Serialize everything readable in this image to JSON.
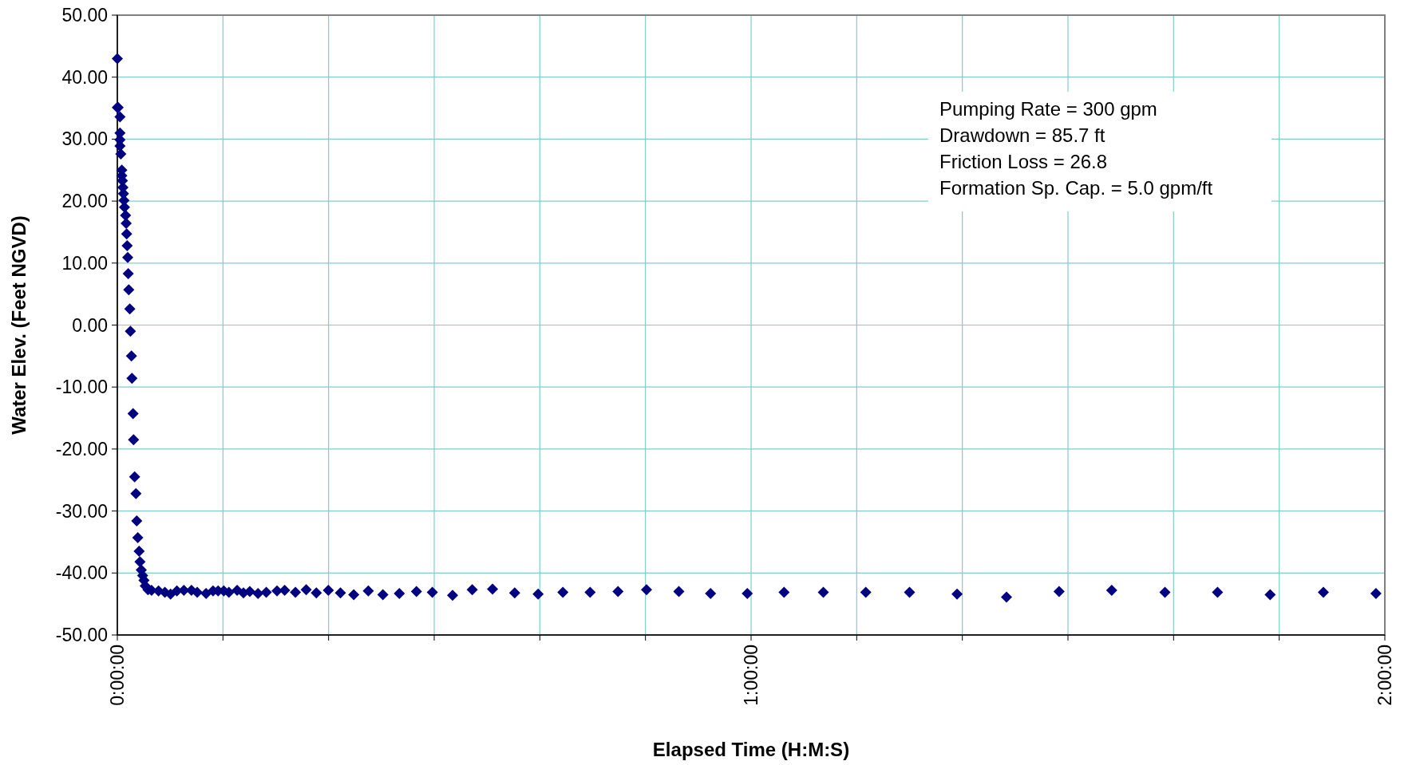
{
  "chart_data": {
    "type": "scatter",
    "xlabel": "Elapsed Time (H:M:S)",
    "ylabel": "Water Elev. (Feet NGVD)",
    "annotations": [
      "Pumping Rate = 300 gpm",
      "Drawdown = 85.7 ft",
      "Friction Loss = 26.8",
      "Formation Sp. Cap. = 5.0 gpm/ft"
    ],
    "series": [
      {
        "color": "#000080",
        "x": [
          0,
          0,
          0.0013,
          0.0042,
          0.0042,
          0.0042,
          0.0042,
          0.0055,
          0.0071,
          0.0071,
          0.008,
          0.0088,
          0.0097,
          0.0105,
          0.0113,
          0.013,
          0.0139,
          0.0147,
          0.0155,
          0.0164,
          0.0172,
          0.018,
          0.0197,
          0.0206,
          0.0223,
          0.0231,
          0.0248,
          0.0256,
          0.0273,
          0.0294,
          0.0306,
          0.0323,
          0.0344,
          0.0357,
          0.0378,
          0.0399,
          0.042,
          0.0441,
          0.0483,
          0.054,
          0.065,
          0.075,
          0.084,
          0.094,
          0.105,
          0.117,
          0.126,
          0.14,
          0.151,
          0.159,
          0.168,
          0.176,
          0.189,
          0.199,
          0.209,
          0.222,
          0.235,
          0.252,
          0.264,
          0.281,
          0.298,
          0.314,
          0.333,
          0.352,
          0.373,
          0.396,
          0.419,
          0.445,
          0.472,
          0.497,
          0.529,
          0.56,
          0.592,
          0.627,
          0.664,
          0.703,
          0.746,
          0.79,
          0.835,
          0.886,
          0.936,
          0.994,
          1.052,
          1.114,
          1.181,
          1.25,
          1.325,
          1.403,
          1.486,
          1.569,
          1.653,
          1.736,
          1.819,
          1.903,
          1.986
        ],
        "values": [
          43.0,
          35.1,
          35.1,
          33.6,
          31.0,
          29.9,
          28.9,
          27.6,
          25.0,
          24.1,
          23.3,
          22.2,
          21.2,
          20.1,
          19.0,
          17.7,
          16.4,
          14.7,
          12.8,
          10.9,
          8.3,
          5.7,
          2.6,
          -1.0,
          -5.0,
          -8.6,
          -14.3,
          -18.5,
          -24.5,
          -27.2,
          -31.6,
          -34.3,
          -36.5,
          -38.2,
          -39.5,
          -40.4,
          -41.2,
          -42.1,
          -42.7,
          -42.8,
          -42.9,
          -43.1,
          -43.4,
          -42.9,
          -42.8,
          -42.8,
          -43.1,
          -43.3,
          -42.9,
          -42.9,
          -42.9,
          -43.1,
          -42.8,
          -43.2,
          -43.0,
          -43.3,
          -43.1,
          -42.9,
          -42.8,
          -43.1,
          -42.7,
          -43.2,
          -42.8,
          -43.2,
          -43.5,
          -42.9,
          -43.5,
          -43.3,
          -43.0,
          -43.1,
          -43.6,
          -42.7,
          -42.6,
          -43.2,
          -43.4,
          -43.1,
          -43.1,
          -43.0,
          -42.7,
          -43.0,
          -43.3,
          -43.3,
          -43.1,
          -43.1,
          -43.1,
          -43.1,
          -43.4,
          -43.9,
          -43.0,
          -42.8,
          -43.1,
          -43.1,
          -43.5,
          -43.1,
          -43.3
        ]
      }
    ],
    "xlim": [
      0,
      2
    ],
    "xticks": [
      {
        "value": 0,
        "label": "0:00:00"
      },
      {
        "value": 0.16667,
        "label": null
      },
      {
        "value": 0.33333,
        "label": null
      },
      {
        "value": 0.5,
        "label": null
      },
      {
        "value": 0.66667,
        "label": null
      },
      {
        "value": 0.83333,
        "label": null
      },
      {
        "value": 1,
        "label": "1:00:00"
      },
      {
        "value": 1.16667,
        "label": null
      },
      {
        "value": 1.33333,
        "label": null
      },
      {
        "value": 1.5,
        "label": null
      },
      {
        "value": 1.66667,
        "label": null
      },
      {
        "value": 1.83333,
        "label": null
      },
      {
        "value": 2,
        "label": "2:00:00"
      }
    ],
    "ylim": [
      -50,
      50
    ],
    "yticks": [
      {
        "value": -50,
        "label": "-50.00"
      },
      {
        "value": -40,
        "label": "-40.00"
      },
      {
        "value": -30,
        "label": "-30.00"
      },
      {
        "value": -20,
        "label": "-20.00"
      },
      {
        "value": -10,
        "label": "-10.00"
      },
      {
        "value": 0,
        "label": "0.00"
      },
      {
        "value": 10,
        "label": "10.00"
      },
      {
        "value": 20,
        "label": "20.00"
      },
      {
        "value": 30,
        "label": "30.00"
      },
      {
        "value": 40,
        "label": "40.00"
      },
      {
        "value": 50,
        "label": "50.00"
      }
    ],
    "grid": true,
    "marker": "diamond"
  }
}
